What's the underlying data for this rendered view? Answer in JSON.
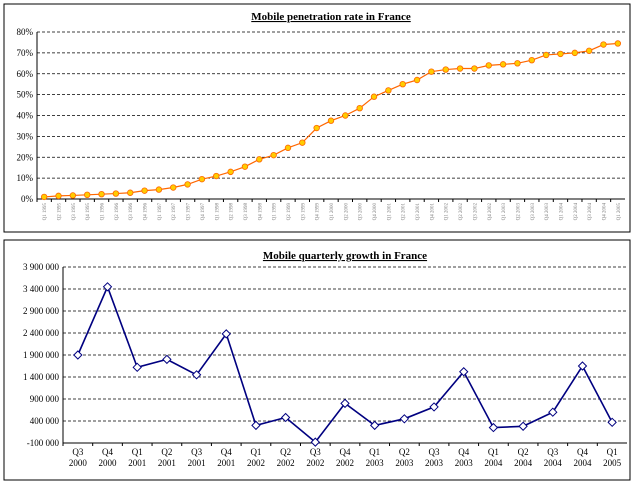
{
  "chart_data": [
    {
      "type": "line",
      "title": "Mobile penetration rate in France",
      "categories": [
        "Q1 1995",
        "Q2 1995",
        "Q3 1995",
        "Q4 1995",
        "Q1 1996",
        "Q2 1996",
        "Q3 1996",
        "Q4 1996",
        "Q1 1997",
        "Q2 1997",
        "Q3 1997",
        "Q4 1997",
        "Q1 1998",
        "Q2 1998",
        "Q3 1998",
        "Q4 1998",
        "Q1 1999",
        "Q2 1999",
        "Q3 1999",
        "Q4 1999",
        "Q1 2000",
        "Q2 2000",
        "Q3 2000",
        "Q4 2000",
        "Q1 2001",
        "Q2 2001",
        "Q3 2001",
        "Q4 2001",
        "Q1 2002",
        "Q2 2002",
        "Q3 2002",
        "Q4 2002",
        "Q1 2003",
        "Q2 2003",
        "Q3 2003",
        "Q4 2003",
        "Q1 2004",
        "Q2 2004",
        "Q3 2004",
        "Q4 2004",
        "Q1 2005"
      ],
      "values": [
        1,
        1.5,
        1.7,
        2,
        2.3,
        2.6,
        3,
        4,
        4.5,
        5.5,
        7,
        9.5,
        11,
        13,
        15.5,
        19,
        21,
        24.5,
        27,
        34,
        37.5,
        40,
        43.5,
        49,
        52,
        55,
        57,
        61,
        62,
        62.5,
        62.5,
        64,
        64.5,
        65,
        66.5,
        69,
        69.5,
        70,
        71,
        74,
        74.5
      ],
      "color": "#ff6600",
      "marker": "circle",
      "marker_fill": "#ffcc00",
      "ylim": [
        0,
        80
      ],
      "yticks": [
        {
          "value": 0,
          "label": "0%"
        },
        {
          "value": 10,
          "label": "10%"
        },
        {
          "value": 20,
          "label": "20%"
        },
        {
          "value": 30,
          "label": "30%"
        },
        {
          "value": 40,
          "label": "40%"
        },
        {
          "value": 50,
          "label": "50%"
        },
        {
          "value": 60,
          "label": "60%"
        },
        {
          "value": 70,
          "label": "70%"
        },
        {
          "value": 80,
          "label": "80%"
        }
      ],
      "grid": true
    },
    {
      "type": "line",
      "title": "Mobile quarterly growth in France",
      "categories": [
        "Q3 2000",
        "Q4 2000",
        "Q1 2001",
        "Q2 2001",
        "Q3 2001",
        "Q4 2001",
        "Q1 2002",
        "Q2 2002",
        "Q3 2002",
        "Q4 2002",
        "Q1 2003",
        "Q2 2003",
        "Q3 2003",
        "Q4 2003",
        "Q1 2004",
        "Q2 2004",
        "Q3 2004",
        "Q4 2004",
        "Q1 2005"
      ],
      "values": [
        1900000,
        3450000,
        1620000,
        1800000,
        1450000,
        2380000,
        300000,
        480000,
        -80000,
        800000,
        300000,
        450000,
        720000,
        1520000,
        250000,
        280000,
        600000,
        1650000,
        370000
      ],
      "color": "#000080",
      "marker": "diamond",
      "marker_fill": "#ffffff",
      "ylim": [
        -100000,
        3900000
      ],
      "yticks": [
        {
          "value": -100000,
          "label": "-100 000"
        },
        {
          "value": 400000,
          "label": "400 000"
        },
        {
          "value": 900000,
          "label": "900 000"
        },
        {
          "value": 1400000,
          "label": "1 400 000"
        },
        {
          "value": 1900000,
          "label": "1 900 000"
        },
        {
          "value": 2400000,
          "label": "2 400 000"
        },
        {
          "value": 2900000,
          "label": "2 900 000"
        },
        {
          "value": 3400000,
          "label": "3 400 000"
        },
        {
          "value": 3900000,
          "label": "3 900 000"
        }
      ],
      "grid": true
    }
  ]
}
